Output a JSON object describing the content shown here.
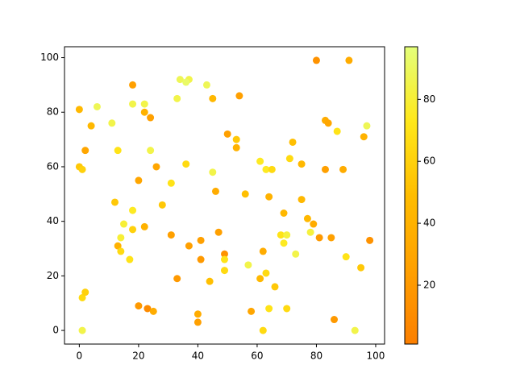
{
  "chart_data": {
    "type": "scatter",
    "x": [
      0,
      6,
      18,
      18,
      22,
      22,
      24,
      34,
      37,
      36,
      43,
      33,
      45,
      54,
      80,
      91,
      83,
      84,
      87,
      97,
      96,
      4,
      11,
      2,
      13,
      24,
      0,
      1,
      26,
      20,
      31,
      36,
      50,
      53,
      53,
      61,
      63,
      65,
      71,
      72,
      75,
      83,
      89,
      45,
      46,
      56,
      64,
      75,
      12,
      28,
      18,
      15,
      18,
      22,
      14,
      13,
      14,
      17,
      31,
      37,
      41,
      41,
      47,
      49,
      49,
      49,
      57,
      62,
      63,
      61,
      66,
      68,
      70,
      69,
      69,
      73,
      77,
      79,
      78,
      81,
      85,
      90,
      95,
      98,
      33,
      44,
      1,
      2,
      20,
      23,
      25,
      40,
      40,
      58,
      64,
      70,
      86,
      1,
      62,
      93
    ],
    "values": [
      81,
      82,
      90,
      83,
      83,
      80,
      78,
      92,
      92,
      91,
      90,
      85,
      85,
      86,
      99,
      99,
      77,
      76,
      73,
      75,
      71,
      75,
      76,
      66,
      66,
      66,
      60,
      59,
      60,
      55,
      54,
      61,
      72,
      70,
      67,
      62,
      59,
      59,
      63,
      69,
      61,
      59,
      59,
      58,
      51,
      50,
      49,
      48,
      47,
      46,
      44,
      39,
      37,
      38,
      34,
      31,
      29,
      26,
      35,
      31,
      33,
      26,
      36,
      28,
      26,
      22,
      24,
      29,
      21,
      19,
      16,
      35,
      35,
      32,
      43,
      28,
      41,
      39,
      36,
      34,
      34,
      27,
      23,
      33,
      19,
      18,
      12,
      14,
      9,
      8,
      7,
      6,
      3,
      7,
      8,
      8,
      4,
      0,
      0,
      0
    ],
    "c": [
      45,
      88,
      25,
      85,
      85,
      40,
      25,
      88,
      85,
      92,
      88,
      85,
      45,
      25,
      15,
      35,
      35,
      30,
      70,
      88,
      40,
      45,
      85,
      30,
      70,
      85,
      55,
      60,
      30,
      30,
      70,
      65,
      25,
      55,
      40,
      75,
      75,
      65,
      65,
      50,
      45,
      25,
      35,
      85,
      35,
      50,
      40,
      45,
      55,
      55,
      75,
      80,
      60,
      40,
      80,
      40,
      65,
      70,
      25,
      25,
      25,
      20,
      25,
      15,
      70,
      65,
      85,
      35,
      65,
      45,
      55,
      70,
      82,
      75,
      45,
      85,
      45,
      35,
      82,
      20,
      25,
      70,
      55,
      15,
      20,
      50,
      65,
      60,
      20,
      10,
      35,
      35,
      25,
      30,
      70,
      65,
      20,
      85,
      65,
      85
    ],
    "colormap": [
      "#fc7f00",
      "#ffa000",
      "#ffbd00",
      "#ffe81a",
      "#e4ff7a"
    ],
    "clim": [
      1,
      97
    ],
    "cticks": [
      20,
      40,
      60,
      80
    ],
    "xlim": [
      -5,
      103
    ],
    "ylim": [
      -5,
      104
    ],
    "xticks": [
      0,
      20,
      40,
      60,
      80,
      100
    ],
    "yticks": [
      0,
      20,
      40,
      60,
      80,
      100
    ]
  }
}
